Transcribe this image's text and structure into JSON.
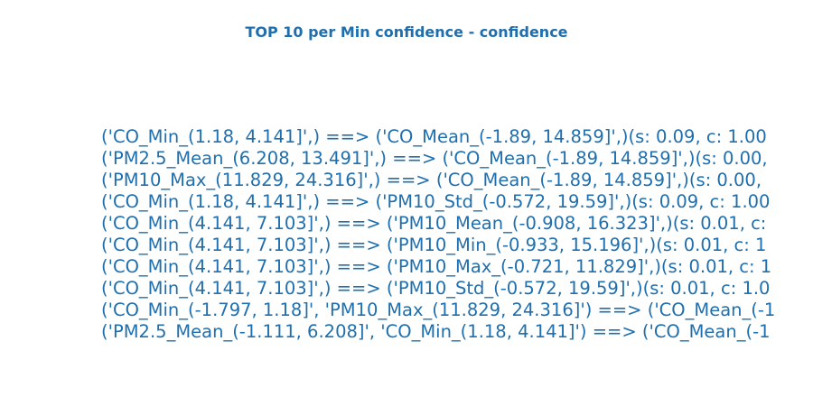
{
  "title": "TOP 10 per Min confidence - confidence",
  "text_color": "#1f6fae",
  "chart_data": {
    "type": "table",
    "title": "TOP 10 per Min confidence - confidence",
    "rules": [
      "('CO_Min_(1.18, 4.141]',) ==> ('CO_Mean_(-1.89, 14.859]',)(s: 0.09, c: 1.00",
      "('PM2.5_Mean_(6.208, 13.491]',) ==> ('CO_Mean_(-1.89, 14.859]',)(s: 0.00,",
      "('PM10_Max_(11.829, 24.316]',) ==> ('CO_Mean_(-1.89, 14.859]',)(s: 0.00,",
      "('CO_Min_(1.18, 4.141]',) ==> ('PM10_Std_(-0.572, 19.59]',)(s: 0.09, c: 1.00",
      "('CO_Min_(4.141, 7.103]',) ==> ('PM10_Mean_(-0.908, 16.323]',)(s: 0.01, c:",
      "('CO_Min_(4.141, 7.103]',) ==> ('PM10_Min_(-0.933, 15.196]',)(s: 0.01, c: 1",
      "('CO_Min_(4.141, 7.103]',) ==> ('PM10_Max_(-0.721, 11.829]',)(s: 0.01, c: 1",
      "('CO_Min_(4.141, 7.103]',) ==> ('PM10_Std_(-0.572, 19.59]',)(s: 0.01, c: 1.0",
      "('CO_Min_(-1.797, 1.18]', 'PM10_Max_(11.829, 24.316]') ==> ('CO_Mean_(-1",
      "('PM2.5_Mean_(-1.111, 6.208]', 'CO_Min_(1.18, 4.141]') ==> ('CO_Mean_(-1"
    ]
  }
}
